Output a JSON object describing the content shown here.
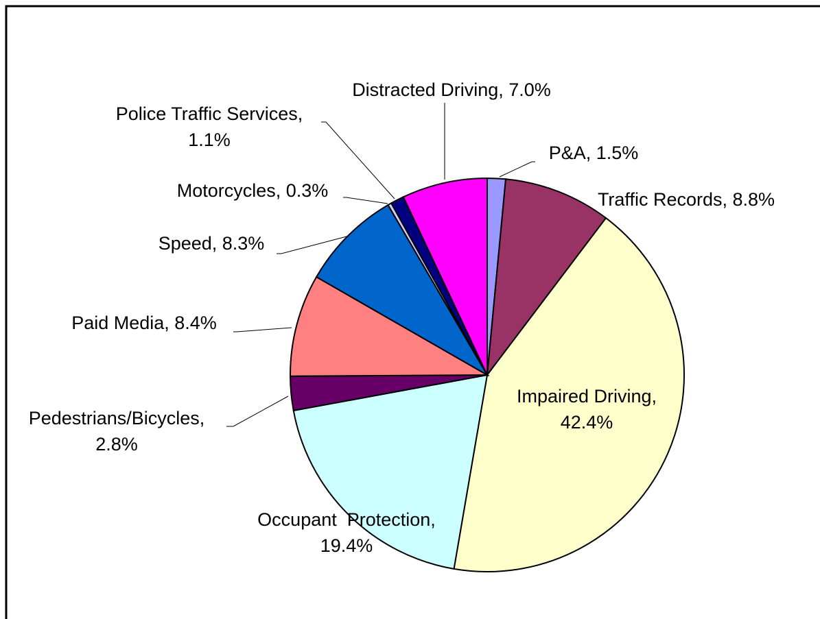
{
  "chart_data": {
    "type": "pie",
    "values": [
      1.5,
      8.8,
      42.4,
      19.4,
      2.8,
      8.4,
      8.3,
      0.3,
      1.1,
      7.0
    ],
    "value_labels": [
      [
        "P&A, 1.5%"
      ],
      [
        "Traffic Records, 8.8%"
      ],
      [
        "Impaired Driving,",
        "42.4%"
      ],
      [
        "Occupant  Protection,",
        "19.4%"
      ],
      [
        "Pedestrians/Bicycles,",
        "2.8%"
      ],
      [
        "Paid Media, 8.4%"
      ],
      [
        "Speed, 8.3%"
      ],
      [
        "Motorcycles, 0.3%"
      ],
      [
        "Police Traffic Services,",
        "1.1%"
      ],
      [
        "Distracted Driving, 7.0%"
      ]
    ],
    "colors": [
      "#9999ff",
      "#993366",
      "#ffffcc",
      "#ccffff",
      "#660066",
      "#ff8080",
      "#0066cc",
      "#ccccff",
      "#000080",
      "#ff00ff"
    ]
  }
}
